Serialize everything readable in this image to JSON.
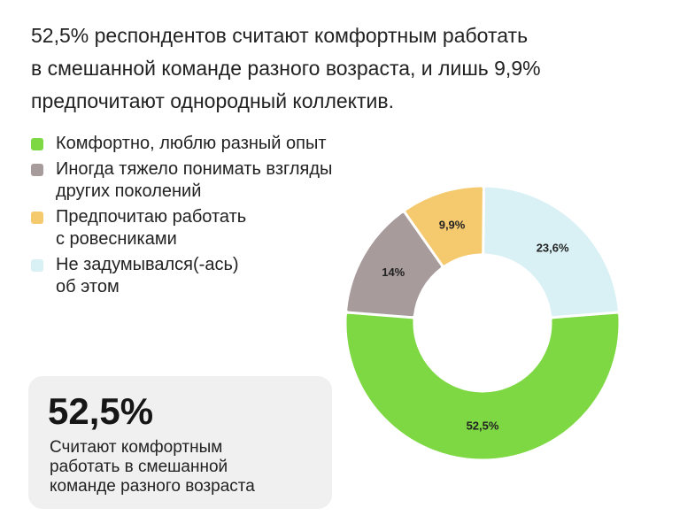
{
  "headline": {
    "lines": [
      "52,5% респондентов считают комфортным работать",
      "в смешанной команде разного возраста, и лишь 9,9%",
      "предпочитают однородный коллектив."
    ]
  },
  "legend": [
    {
      "lines": [
        "Комфортно, люблю разный опыт"
      ],
      "color": "#7ed843"
    },
    {
      "lines": [
        "Иногда тяжело понимать взгляды",
        "других поколений"
      ],
      "color": "#a89b9c"
    },
    {
      "lines": [
        "Предпочитаю работать",
        "с ровесниками"
      ],
      "color": "#f5c96e"
    },
    {
      "lines": [
        "Не задумывался(-ась)",
        "об этом"
      ],
      "color": "#d9f1f5"
    }
  ],
  "card": {
    "value": "52,5%",
    "caption_lines": [
      "Считают комфортным",
      "работать в смешанной",
      "команде разного возраста"
    ]
  },
  "chart_data": {
    "type": "pie",
    "style": "donut",
    "categories": [
      "Комфортно, люблю разный опыт",
      "Иногда тяжело понимать взгляды других поколений",
      "Предпочитаю работать с ровесниками",
      "Не задумывался(-ась) об этом"
    ],
    "values": [
      52.5,
      14,
      9.9,
      23.6
    ],
    "labels": [
      "52,5%",
      "14%",
      "9,9%",
      "23,6%"
    ],
    "colors": [
      "#7ed843",
      "#a89b9c",
      "#f5c96e",
      "#d9f1f5"
    ]
  }
}
